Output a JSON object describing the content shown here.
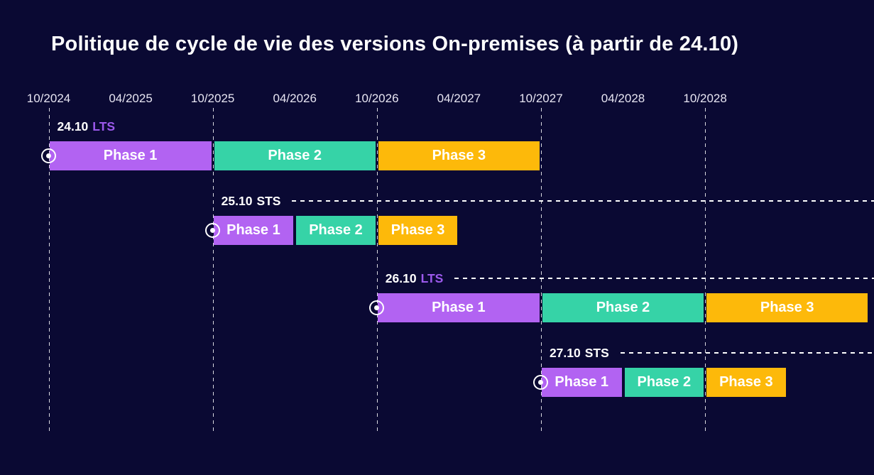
{
  "colors": {
    "background": "#0a0933",
    "phase1": "#b263f2",
    "phase2": "#36d3a7",
    "phase3": "#fdb90a",
    "lts_text": "#9c59ec",
    "sts_text": "#ffffff",
    "axis_text": "#e7e5f2",
    "line": "#ffffff",
    "title_text": "#ffffff",
    "bar_text": "#ffffff"
  },
  "chart_data": {
    "type": "gantt",
    "title": "Politique de cycle de vie des versions On-premises (à partir de 24.10)",
    "x_axis": {
      "tick_labels": [
        "10/2024",
        "04/2025",
        "10/2025",
        "04/2026",
        "10/2026",
        "04/2027",
        "10/2027",
        "04/2028",
        "10/2028"
      ],
      "gridlines_at": [
        "10/2024",
        "10/2025",
        "10/2026",
        "10/2027",
        "10/2028"
      ],
      "grid": "vertical-dashed"
    },
    "legend_position": "none",
    "rows": [
      {
        "version": "24.10",
        "release_type": "LTS",
        "start": "10/2024",
        "label_dashline_to_right_edge": false,
        "phases": [
          {
            "label": "Phase 1",
            "start": "10/2024",
            "end": "10/2025"
          },
          {
            "label": "Phase 2",
            "start": "10/2025",
            "end": "10/2026"
          },
          {
            "label": "Phase 3",
            "start": "10/2026",
            "end": "10/2027"
          }
        ]
      },
      {
        "version": "25.10",
        "release_type": "STS",
        "start": "10/2025",
        "label_dashline_to_right_edge": true,
        "phases": [
          {
            "label": "Phase 1",
            "start": "10/2025",
            "end": "04/2026"
          },
          {
            "label": "Phase 2",
            "start": "04/2026",
            "end": "10/2026"
          },
          {
            "label": "Phase 3",
            "start": "10/2026",
            "end": "04/2027"
          }
        ]
      },
      {
        "version": "26.10",
        "release_type": "LTS",
        "start": "10/2026",
        "label_dashline_to_right_edge": true,
        "phases": [
          {
            "label": "Phase 1",
            "start": "10/2026",
            "end": "10/2027"
          },
          {
            "label": "Phase 2",
            "start": "10/2027",
            "end": "10/2028"
          },
          {
            "label": "Phase 3",
            "start": "10/2028",
            "end": "10/2029"
          }
        ]
      },
      {
        "version": "27.10",
        "release_type": "STS",
        "start": "10/2027",
        "label_dashline_to_right_edge": true,
        "phases": [
          {
            "label": "Phase 1",
            "start": "10/2027",
            "end": "04/2028"
          },
          {
            "label": "Phase 2",
            "start": "04/2028",
            "end": "10/2028"
          },
          {
            "label": "Phase 3",
            "start": "10/2028",
            "end": "04/2029"
          }
        ]
      }
    ]
  }
}
